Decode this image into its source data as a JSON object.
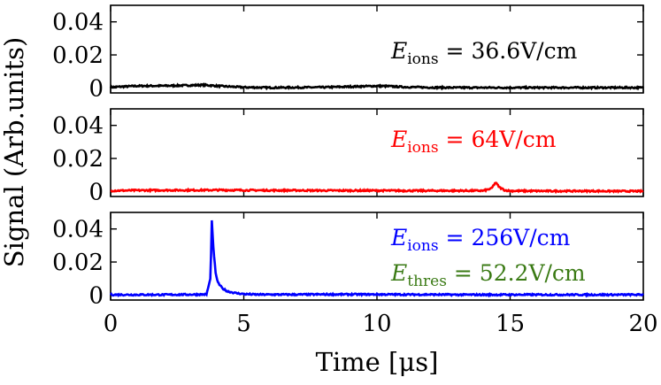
{
  "chart_data": [
    {
      "type": "line",
      "panel": "top",
      "xlim": [
        0,
        20
      ],
      "ylim": [
        -0.003,
        0.05
      ],
      "yticks": [
        0,
        0.02,
        0.04
      ],
      "ytick_labels": [
        "0",
        "0.02",
        "0.04"
      ],
      "series": [
        {
          "name": "E_ions = 36.6V/cm",
          "color": "#000000",
          "x": [
            0,
            1,
            2,
            3,
            3.5,
            4,
            5,
            6,
            7,
            8,
            9,
            10,
            10.5,
            11,
            12,
            13,
            14,
            15,
            16,
            17,
            18,
            19,
            20
          ],
          "y": [
            0.0005,
            0.0012,
            0.0013,
            0.0016,
            0.0018,
            0.0012,
            0.0004,
            0.0002,
            0.0003,
            0.0004,
            0.0008,
            0.0012,
            0.001,
            0.0006,
            0.0003,
            0.0002,
            0.0002,
            0.0002,
            0.0002,
            0.0002,
            0.0002,
            0.0002,
            0.0002
          ]
        }
      ],
      "annotation": {
        "symbol": "E",
        "subscript": "ions",
        "text": " = 36.6V/cm",
        "color": "#000000"
      }
    },
    {
      "type": "line",
      "panel": "middle",
      "xlim": [
        0,
        20
      ],
      "ylim": [
        -0.003,
        0.05
      ],
      "yticks": [
        0,
        0.02,
        0.04
      ],
      "ytick_labels": [
        "0",
        "0.02",
        "0.04"
      ],
      "series": [
        {
          "name": "E_ions = 64V/cm",
          "color": "#ff0000",
          "x": [
            0,
            1,
            2,
            3,
            4,
            5,
            6,
            7,
            8,
            9,
            10,
            11,
            12,
            13,
            14,
            14.3,
            14.45,
            14.6,
            14.8,
            15,
            16,
            17,
            18,
            19,
            20
          ],
          "y": [
            0.0005,
            0.0007,
            0.0008,
            0.0008,
            0.0009,
            0.0008,
            0.0007,
            0.0007,
            0.0006,
            0.0006,
            0.0006,
            0.0005,
            0.0005,
            0.0005,
            0.0005,
            0.0018,
            0.0055,
            0.0025,
            0.0008,
            0.0004,
            0.0003,
            0.0003,
            0.0003,
            0.0002,
            0.0002
          ]
        }
      ],
      "annotation": {
        "symbol": "E",
        "subscript": "ions",
        "text": " = 64V/cm",
        "color": "#ff0000"
      }
    },
    {
      "type": "line",
      "panel": "bottom",
      "xlim": [
        0,
        20
      ],
      "ylim": [
        -0.003,
        0.05
      ],
      "yticks": [
        0,
        0.02,
        0.04
      ],
      "ytick_labels": [
        "0",
        "0.02",
        "0.04"
      ],
      "xticks": [
        0,
        5,
        10,
        15,
        20
      ],
      "xtick_labels": [
        "0",
        "5",
        "10",
        "15",
        "20"
      ],
      "series": [
        {
          "name": "E_ions = 256V/cm",
          "color": "#0000ff",
          "x": [
            0,
            1,
            2,
            3,
            3.6,
            3.75,
            3.8,
            3.85,
            3.95,
            4.05,
            4.2,
            4.4,
            4.7,
            5.0,
            5.5,
            6,
            7,
            8,
            9,
            10,
            11,
            12,
            13,
            14,
            15,
            16,
            17,
            18,
            19,
            20
          ],
          "y": [
            0.0002,
            0.0002,
            0.0002,
            0.0003,
            0.0004,
            0.01,
            0.045,
            0.03,
            0.012,
            0.007,
            0.004,
            0.0022,
            0.0012,
            0.0006,
            0.0003,
            0.0003,
            0.0003,
            0.0004,
            0.0004,
            0.0004,
            0.0003,
            0.0003,
            0.0002,
            0.0002,
            0.0002,
            0.0002,
            0.0002,
            0.0002,
            0.0002,
            0.0002
          ]
        }
      ],
      "annotation": {
        "symbol": "E",
        "subscript": "ions",
        "text": " = 256V/cm",
        "color": "#0000ff"
      },
      "annotation2": {
        "symbol": "E",
        "subscript": "thres",
        "text": " = 52.2V/cm",
        "color": "#3a7a14"
      }
    }
  ],
  "axes": {
    "xlabel": "Time [μs]",
    "ylabel": "Signal (Arb.units)"
  }
}
